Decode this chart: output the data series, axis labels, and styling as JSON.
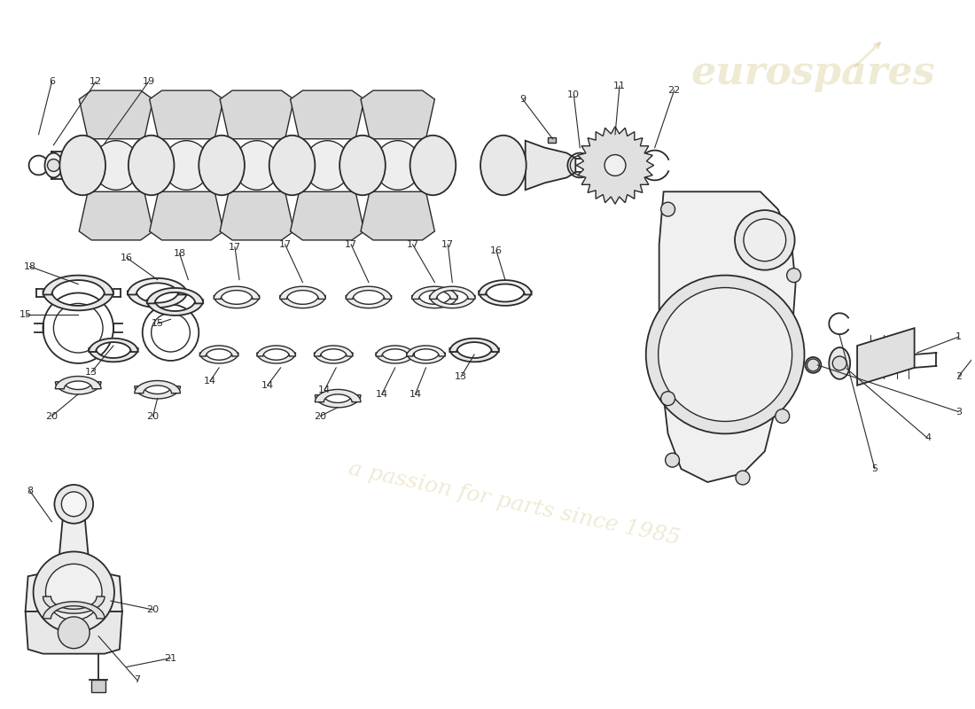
{
  "bg_color": "#ffffff",
  "line_color": "#2a2a2a",
  "fig_width": 11.0,
  "fig_height": 8.0,
  "watermark1": "eurospares",
  "watermark2": "a passion for parts since 1985",
  "wm_color": "#c8b464",
  "wm_alpha": 0.28
}
